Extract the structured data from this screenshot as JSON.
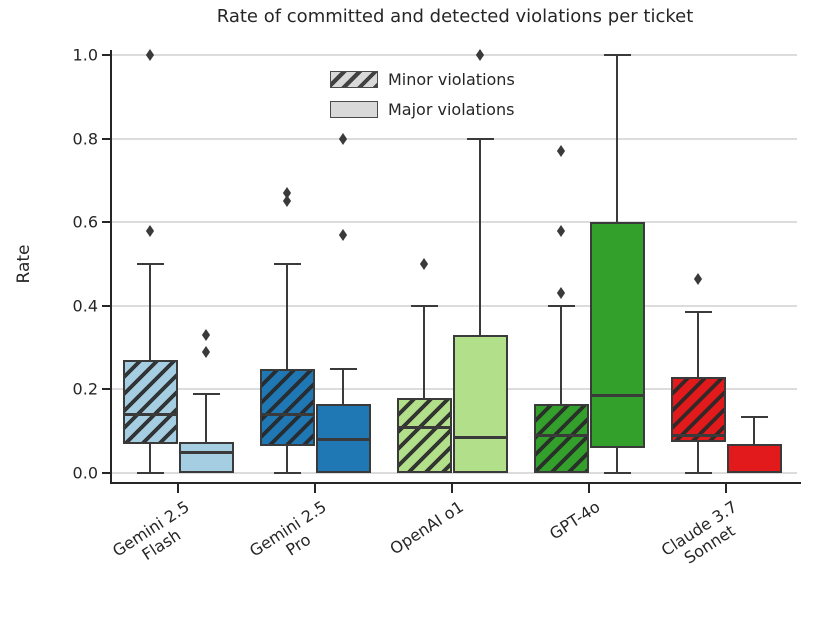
{
  "title": "Rate of committed and detected violations per ticket",
  "ylabel": "Rate",
  "legend": {
    "minor_label": "Minor violations",
    "major_label": "Major violations"
  },
  "colors": {
    "box_edge": "#3a3a3a",
    "grid": "#dcdcdc",
    "axis": "#262626",
    "legend_patch": "#d9d9d9",
    "text": "#262626"
  },
  "chart_data": {
    "type": "boxplot",
    "title": "Rate of committed and detected violations per ticket",
    "xlabel": "",
    "ylabel": "Rate",
    "ylim": [
      0.0,
      1.0
    ],
    "y_ticks": [
      "0.0",
      "0.2",
      "0.4",
      "0.6",
      "0.8",
      "1.0"
    ],
    "y_tick_values": [
      0.0,
      0.2,
      0.4,
      0.6,
      0.8,
      1.0
    ],
    "grid": true,
    "legend_position": "upper center",
    "series": [
      {
        "name": "Minor violations",
        "hatch": "//",
        "fill": "per-model color"
      },
      {
        "name": "Major violations",
        "hatch": null,
        "fill": "per-model color"
      }
    ],
    "categories": [
      "Gemini 2.5 Flash",
      "Gemini 2.5 Pro",
      "OpenAI o1",
      "GPT-4o",
      "Claude 3.7 Sonnet"
    ],
    "groups": [
      {
        "model": "Gemini 2.5 Flash",
        "label_lines": [
          "Gemini 2.5",
          "Flash"
        ],
        "color": "#a6cee3",
        "minor": {
          "whisker_low": 0.0,
          "q1": 0.07,
          "median": 0.14,
          "q3": 0.27,
          "whisker_high": 0.5,
          "outliers": [
            0.58,
            1.0
          ]
        },
        "major": {
          "whisker_low": 0.0,
          "q1": 0.0,
          "median": 0.05,
          "q3": 0.075,
          "whisker_high": 0.19,
          "outliers": [
            0.29,
            0.33
          ]
        }
      },
      {
        "model": "Gemini 2.5 Pro",
        "label_lines": [
          "Gemini 2.5",
          "Pro"
        ],
        "color": "#1f78b4",
        "minor": {
          "whisker_low": 0.0,
          "q1": 0.065,
          "median": 0.14,
          "q3": 0.25,
          "whisker_high": 0.5,
          "outliers": [
            0.65,
            0.67
          ]
        },
        "major": {
          "whisker_low": 0.0,
          "q1": 0.0,
          "median": 0.08,
          "q3": 0.165,
          "whisker_high": 0.25,
          "outliers": [
            0.57,
            0.8
          ]
        }
      },
      {
        "model": "OpenAI o1",
        "label_lines": [
          "OpenAI o1"
        ],
        "color": "#b2df8a",
        "minor": {
          "whisker_low": 0.0,
          "q1": 0.0,
          "median": 0.11,
          "q3": 0.18,
          "whisker_high": 0.4,
          "outliers": [
            0.5
          ]
        },
        "major": {
          "whisker_low": 0.0,
          "q1": 0.0,
          "median": 0.085,
          "q3": 0.33,
          "whisker_high": 0.8,
          "outliers": [
            1.0
          ]
        }
      },
      {
        "model": "GPT-4o",
        "label_lines": [
          "GPT-4o"
        ],
        "color": "#33a02c",
        "minor": {
          "whisker_low": 0.0,
          "q1": 0.0,
          "median": 0.09,
          "q3": 0.165,
          "whisker_high": 0.4,
          "outliers": [
            0.43,
            0.58,
            0.77
          ]
        },
        "major": {
          "whisker_low": 0.0,
          "q1": 0.06,
          "median": 0.185,
          "q3": 0.6,
          "whisker_high": 1.0,
          "outliers": []
        }
      },
      {
        "model": "Claude 3.7 Sonnet",
        "label_lines": [
          "Claude 3.7",
          "Sonnet"
        ],
        "color": "#e31a1c",
        "minor": {
          "whisker_low": 0.0,
          "q1": 0.075,
          "median": 0.09,
          "q3": 0.23,
          "whisker_high": 0.385,
          "outliers": [
            0.465
          ]
        },
        "major": {
          "whisker_low": 0.0,
          "q1": 0.0,
          "median": 0.0,
          "q3": 0.07,
          "whisker_high": 0.135,
          "outliers": []
        }
      }
    ]
  }
}
